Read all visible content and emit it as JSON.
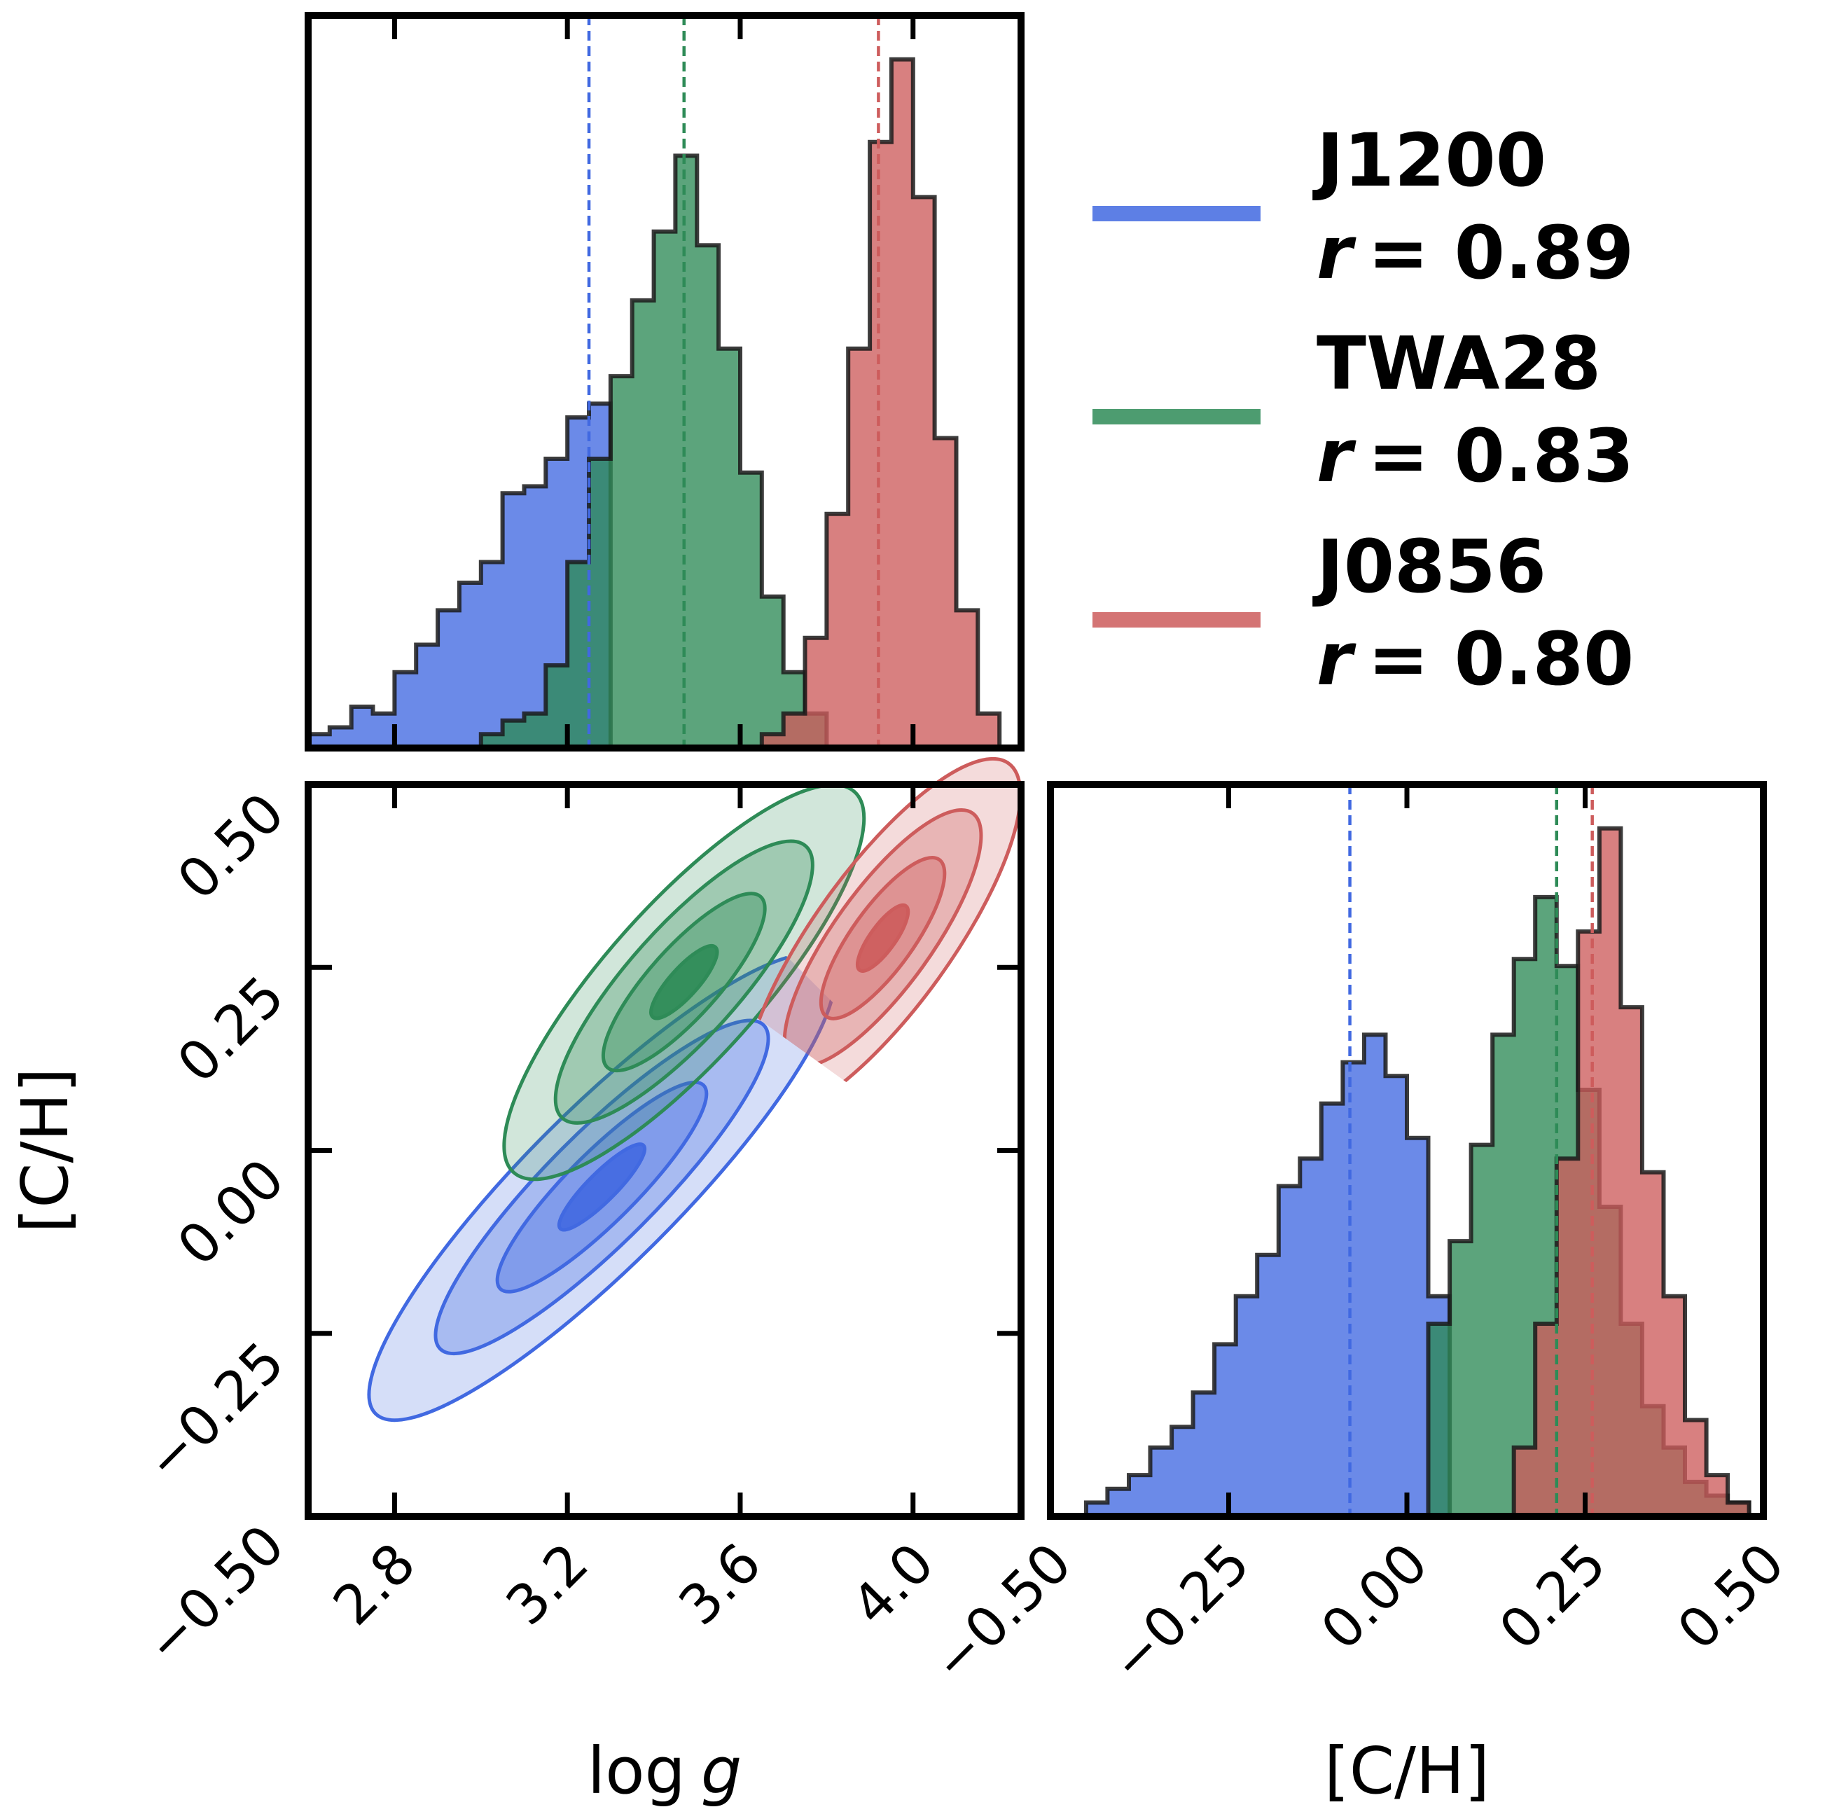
{
  "chart_data": {
    "type": "corner",
    "parameters": [
      {
        "key": "logg",
        "label_text": "log",
        "label_var": "g",
        "range": [
          2.6,
          4.25
        ],
        "ticks": [
          2.8,
          3.2,
          3.6,
          4.0
        ],
        "tick_labels": [
          "2.8",
          "3.2",
          "3.6",
          "4.0"
        ]
      },
      {
        "key": "ch",
        "label": "[C/H]",
        "range": [
          -0.5,
          0.5
        ],
        "ticks": [
          -0.5,
          -0.25,
          0.0,
          0.25,
          0.5
        ],
        "tick_labels": [
          "−0.50",
          "−0.25",
          "0.00",
          "0.25",
          "0.50"
        ]
      }
    ],
    "series": [
      {
        "name": "J1200",
        "r_label": "r",
        "r_value": "= 0.89",
        "color": "#4169e1",
        "logg_median": 3.25,
        "ch_median": -0.08,
        "logg_hist": {
          "edges": [
            2.6,
            2.65,
            2.7,
            2.75,
            2.8,
            2.85,
            2.9,
            2.95,
            3.0,
            3.05,
            3.1,
            3.15,
            3.2,
            3.25,
            3.3
          ],
          "heights": [
            0.02,
            0.03,
            0.06,
            0.05,
            0.11,
            0.15,
            0.2,
            0.24,
            0.27,
            0.37,
            0.38,
            0.42,
            0.48,
            0.5
          ]
        },
        "ch_hist": {
          "edges": [
            -0.45,
            -0.42,
            -0.39,
            -0.36,
            -0.33,
            -0.3,
            -0.27,
            -0.24,
            -0.21,
            -0.18,
            -0.15,
            -0.12,
            -0.09,
            -0.06,
            -0.03,
            0.0,
            0.03,
            0.06
          ],
          "heights": [
            0.02,
            0.04,
            0.06,
            0.1,
            0.13,
            0.18,
            0.25,
            0.32,
            0.38,
            0.48,
            0.52,
            0.6,
            0.66,
            0.7,
            0.64,
            0.55,
            0.32
          ]
        },
        "contours": {
          "center": [
            3.28,
            -0.05
          ],
          "sigma": [
            0.22,
            0.13
          ],
          "rho": 0.89
        }
      },
      {
        "name": "TWA28",
        "r_label": "r",
        "r_value": "= 0.83",
        "color": "#2e8b57",
        "logg_median": 3.47,
        "ch_median": 0.21,
        "logg_hist": {
          "edges": [
            3.0,
            3.05,
            3.1,
            3.15,
            3.2,
            3.25,
            3.3,
            3.35,
            3.4,
            3.45,
            3.5,
            3.55,
            3.6,
            3.65,
            3.7,
            3.75,
            3.8
          ],
          "heights": [
            0.02,
            0.04,
            0.05,
            0.12,
            0.27,
            0.42,
            0.54,
            0.65,
            0.75,
            0.86,
            0.73,
            0.58,
            0.4,
            0.22,
            0.11,
            0.05
          ]
        },
        "ch_hist": {
          "edges": [
            0.03,
            0.06,
            0.09,
            0.12,
            0.15,
            0.18,
            0.21,
            0.24,
            0.27,
            0.3,
            0.33,
            0.36,
            0.39,
            0.42,
            0.45,
            0.48
          ],
          "heights": [
            0.28,
            0.4,
            0.54,
            0.7,
            0.81,
            0.9,
            0.8,
            0.62,
            0.45,
            0.28,
            0.16,
            0.1,
            0.05,
            0.03,
            0.02
          ]
        },
        "contours": {
          "center": [
            3.47,
            0.23
          ],
          "sigma": [
            0.17,
            0.11
          ],
          "rho": 0.83
        }
      },
      {
        "name": "J0856",
        "r_label": "r",
        "r_value": "= 0.80",
        "color": "#cd5c5c",
        "logg_median": 3.92,
        "ch_median": 0.26,
        "logg_hist": {
          "edges": [
            3.65,
            3.7,
            3.75,
            3.8,
            3.85,
            3.9,
            3.95,
            4.0,
            4.05,
            4.1,
            4.15,
            4.2
          ],
          "heights": [
            0.02,
            0.05,
            0.16,
            0.34,
            0.58,
            0.88,
            1.0,
            0.8,
            0.45,
            0.2,
            0.05
          ]
        },
        "ch_hist": {
          "edges": [
            0.15,
            0.18,
            0.21,
            0.24,
            0.27,
            0.3,
            0.33,
            0.36,
            0.39,
            0.42,
            0.45,
            0.48
          ],
          "heights": [
            0.1,
            0.28,
            0.52,
            0.85,
            1.0,
            0.74,
            0.5,
            0.32,
            0.14,
            0.06,
            0.02
          ]
        },
        "contours": {
          "center": [
            3.93,
            0.29
          ],
          "sigma": [
            0.13,
            0.1
          ],
          "rho": 0.8
        }
      }
    ]
  }
}
